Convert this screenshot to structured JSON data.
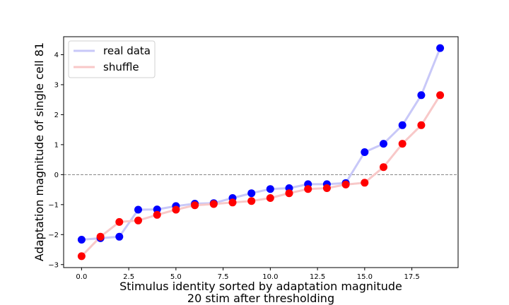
{
  "chart_data": {
    "type": "line",
    "x": [
      0,
      1,
      2,
      3,
      4,
      5,
      6,
      7,
      8,
      9,
      10,
      11,
      12,
      13,
      14,
      15,
      16,
      17,
      18,
      19
    ],
    "series": [
      {
        "name": "real data",
        "line_color": "#c8c8f8",
        "marker_color": "#0000ff",
        "values": [
          -2.17,
          -2.12,
          -2.07,
          -1.17,
          -1.16,
          -1.05,
          -0.97,
          -0.95,
          -0.78,
          -0.62,
          -0.48,
          -0.45,
          -0.32,
          -0.32,
          -0.28,
          0.75,
          1.03,
          1.65,
          2.65,
          4.22
        ]
      },
      {
        "name": "shuffle",
        "line_color": "#f8c8c8",
        "marker_color": "#ff0000",
        "values": [
          -2.72,
          -2.07,
          -1.58,
          -1.53,
          -1.34,
          -1.17,
          -1.02,
          -0.98,
          -0.93,
          -0.88,
          -0.78,
          -0.62,
          -0.48,
          -0.45,
          -0.33,
          -0.27,
          0.25,
          1.03,
          1.65,
          2.65
        ]
      }
    ],
    "xlabel": "Stimulus identity sorted by adaptation magnitude",
    "xlabel2": "20 stim after thresholding",
    "ylabel": "Adaptation magnitude of single cell 81",
    "xlim": [
      -0.95,
      19.95
    ],
    "ylim": [
      -3.1,
      4.6
    ],
    "xticks": [
      0,
      2.5,
      5,
      7.5,
      10,
      12.5,
      15,
      17.5
    ],
    "xtick_labels": [
      "0.0",
      "2.5",
      "5.0",
      "7.5",
      "10.0",
      "12.5",
      "15.0",
      "17.5"
    ],
    "yticks": [
      -3,
      -2,
      -1,
      0,
      1,
      2,
      3,
      4
    ],
    "ytick_labels": [
      "−3",
      "−2",
      "−1",
      "0",
      "1",
      "2",
      "3",
      "4"
    ],
    "reference_line_y": 0,
    "legend_position": "top-left",
    "grid": false
  }
}
